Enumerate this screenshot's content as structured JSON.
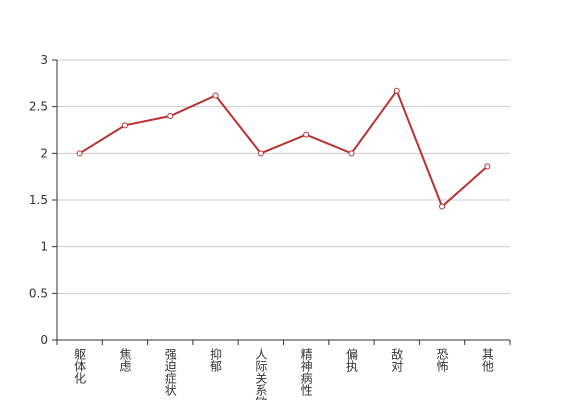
{
  "chart_data": {
    "type": "line",
    "categories": [
      "躯体化",
      "焦虑",
      "强迫症状",
      "抑郁",
      "人际关系敏感",
      "精神病性",
      "偏执",
      "敌对",
      "恐怖",
      "其他"
    ],
    "values": [
      2,
      2.3,
      2.4,
      2.62,
      2,
      2.2,
      2,
      2.67,
      1.43,
      1.86
    ],
    "color": "#b83232",
    "ylim": [
      0,
      3
    ],
    "yticks": [
      0,
      0.5,
      1,
      1.5,
      2,
      2.5,
      3
    ],
    "grid": true
  }
}
